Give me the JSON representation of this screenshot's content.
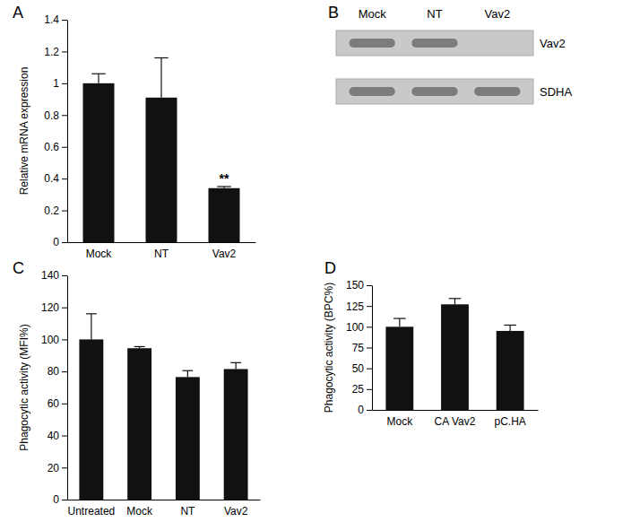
{
  "chart_data": [
    {
      "type": "bar",
      "title": "A",
      "y_label": "Relative mRNA expression",
      "categories": [
        "Mock",
        "NT",
        "Vav2"
      ],
      "values": [
        1.0,
        0.91,
        0.34
      ],
      "errors": [
        0.06,
        0.25,
        0.01
      ],
      "color": "#111111",
      "ylim": [
        0,
        1.4
      ],
      "yticks": [
        0,
        0.2,
        0.4,
        0.6,
        0.8,
        1,
        1.2,
        1.4
      ],
      "grid": false,
      "annotations": [
        {
          "text": "**",
          "x": "Vav2"
        }
      ]
    },
    {
      "type": "bar",
      "title": "C",
      "y_label": "Phagocytic activity (MFI%)",
      "categories": [
        "Untreated",
        "Mock",
        "NT",
        "Vav2"
      ],
      "values": [
        100,
        94.5,
        76.5,
        81.5
      ],
      "errors": [
        16,
        1,
        4,
        4
      ],
      "color": "#111111",
      "ylim": [
        0,
        140
      ],
      "yticks": [
        0,
        20,
        40,
        60,
        80,
        100,
        120,
        140
      ],
      "grid": false
    },
    {
      "type": "bar",
      "title": "D",
      "y_label": "Phagocytic activity (BPC%)",
      "categories": [
        "Mock",
        "CA Vav2",
        "pC.HA"
      ],
      "values": [
        100,
        127,
        95
      ],
      "errors": [
        10,
        7,
        7
      ],
      "color": "#111111",
      "ylim": [
        0,
        150
      ],
      "yticks": [
        0,
        25,
        50,
        75,
        100,
        125,
        150
      ],
      "grid": false
    }
  ],
  "blot": {
    "title": "B",
    "lanes": [
      "Mock",
      "NT",
      "Vav2"
    ],
    "bands": [
      {
        "label": "Vav2",
        "present": [
          true,
          true,
          false
        ]
      },
      {
        "label": "SDHA",
        "present": [
          true,
          true,
          true
        ]
      }
    ]
  }
}
